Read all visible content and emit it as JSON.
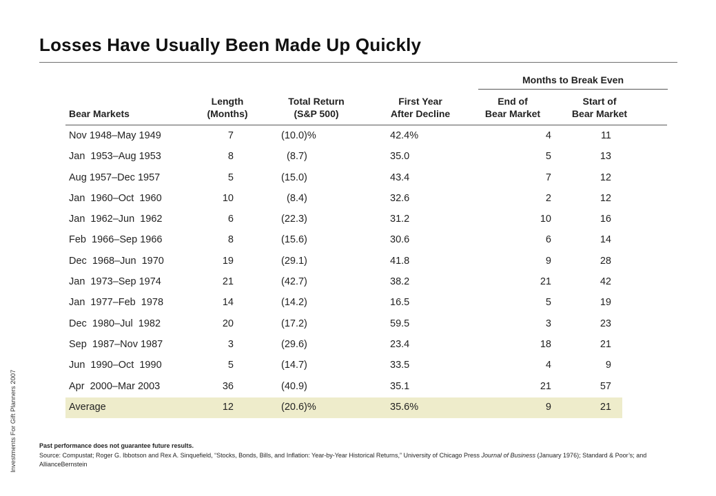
{
  "title": "Losses Have Usually Been Made Up Quickly",
  "side_note": "Investments For Gift Planners 2007",
  "headers": {
    "group": "Months to Break Even",
    "market": "Bear Markets",
    "length": [
      "Length",
      "(Months)"
    ],
    "total": [
      "Total Return",
      "(S&P 500)"
    ],
    "first": [
      "First Year",
      "After Decline"
    ],
    "end": [
      "End of",
      "Bear Market"
    ],
    "start": [
      "Start of",
      "Bear Market"
    ]
  },
  "rows": [
    {
      "market": "Nov 1948–May 1949",
      "length": "7",
      "total": "(10.0)%",
      "first": "42.4%",
      "end": "4",
      "start": "11"
    },
    {
      "market": "Jan  1953–Aug 1953",
      "length": "8",
      "total": "  (8.7)",
      "first": "35.0",
      "end": "5",
      "start": "13"
    },
    {
      "market": "Aug 1957–Dec 1957",
      "length": "5",
      "total": "(15.0)",
      "first": "43.4",
      "end": "7",
      "start": "12"
    },
    {
      "market": "Jan  1960–Oct  1960",
      "length": "10",
      "total": "  (8.4)",
      "first": "32.6",
      "end": "2",
      "start": "12"
    },
    {
      "market": "Jan  1962–Jun  1962",
      "length": "6",
      "total": "(22.3)",
      "first": "31.2",
      "end": "10",
      "start": "16"
    },
    {
      "market": "Feb  1966–Sep 1966",
      "length": "8",
      "total": "(15.6)",
      "first": "30.6",
      "end": "6",
      "start": "14"
    },
    {
      "market": "Dec  1968–Jun  1970",
      "length": "19",
      "total": "(29.1)",
      "first": "41.8",
      "end": "9",
      "start": "28"
    },
    {
      "market": "Jan  1973–Sep 1974",
      "length": "21",
      "total": "(42.7)",
      "first": "38.2",
      "end": "21",
      "start": "42"
    },
    {
      "market": "Jan  1977–Feb  1978",
      "length": "14",
      "total": "(14.2)",
      "first": "16.5",
      "end": "5",
      "start": "19"
    },
    {
      "market": "Dec  1980–Jul  1982",
      "length": "20",
      "total": "(17.2)",
      "first": "59.5",
      "end": "3",
      "start": "23"
    },
    {
      "market": "Sep  1987–Nov 1987",
      "length": "3",
      "total": "(29.6)",
      "first": "23.4",
      "end": "18",
      "start": "21"
    },
    {
      "market": "Jun  1990–Oct  1990",
      "length": "5",
      "total": "(14.7)",
      "first": "33.5",
      "end": "4",
      "start": "9"
    },
    {
      "market": "Apr  2000–Mar 2003",
      "length": "36",
      "total": "(40.9)",
      "first": "35.1",
      "end": "21",
      "start": "57"
    },
    {
      "market": "Average",
      "length": "12",
      "total": "(20.6)%",
      "first": "35.6%",
      "end": "9",
      "start": "21",
      "highlight": true
    }
  ],
  "footnote": {
    "disclaimer": "Past performance does not guarantee future results.",
    "source_prefix": "Source: Compustat; Roger G. Ibbotson and Rex A. Sinquefield, “Stocks, Bonds, Bills, and Inflation: Year-by-Year Historical Returns,” University of Chicago Press ",
    "journal": "Journal of Business",
    "source_suffix": " (January 1976); Standard & Poor’s; and AllianceBernstein"
  },
  "colors": {
    "average_highlight": "#eeeccb",
    "rules": "#555555"
  }
}
